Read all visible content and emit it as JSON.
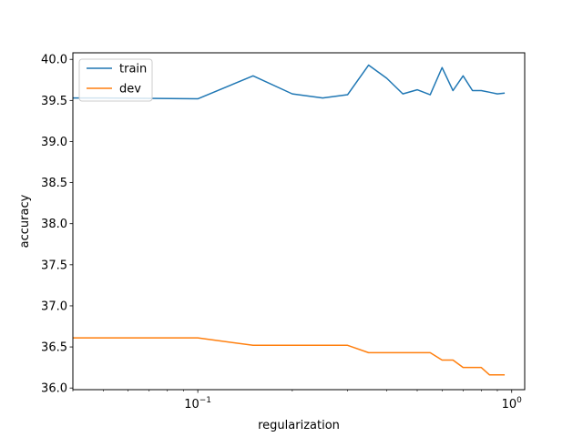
{
  "chart_data": {
    "type": "line",
    "title": "",
    "xlabel": "regularization",
    "ylabel": "accuracy",
    "xscale": "log",
    "xlim": [
      0.04,
      1.1
    ],
    "ylim": [
      35.98,
      40.08
    ],
    "grid": false,
    "legend_position": "top-left",
    "y_ticks": [
      "36.0",
      "36.5",
      "37.0",
      "37.5",
      "38.0",
      "38.5",
      "39.0",
      "39.5",
      "40.0"
    ],
    "x_ticks": [
      {
        "value": 0.1,
        "base": "10",
        "exp": "−1"
      },
      {
        "value": 1,
        "base": "10",
        "exp": "0"
      }
    ],
    "series": [
      {
        "name": "train",
        "color": "#1f77b4",
        "x": [
          0.04,
          0.05,
          0.1,
          0.15,
          0.2,
          0.25,
          0.3,
          0.35,
          0.4,
          0.45,
          0.5,
          0.55,
          0.6,
          0.65,
          0.7,
          0.75,
          0.8,
          0.85,
          0.9,
          0.95
        ],
        "y": [
          39.53,
          39.53,
          39.52,
          39.8,
          39.58,
          39.53,
          39.57,
          39.93,
          39.77,
          39.58,
          39.63,
          39.57,
          39.9,
          39.62,
          39.8,
          39.62,
          39.62,
          39.6,
          39.58,
          39.59
        ]
      },
      {
        "name": "dev",
        "color": "#ff7f0e",
        "x": [
          0.04,
          0.05,
          0.1,
          0.15,
          0.2,
          0.25,
          0.3,
          0.35,
          0.4,
          0.45,
          0.5,
          0.55,
          0.6,
          0.65,
          0.7,
          0.75,
          0.8,
          0.85,
          0.9,
          0.95
        ],
        "y": [
          36.61,
          36.61,
          36.61,
          36.52,
          36.52,
          36.52,
          36.52,
          36.43,
          36.43,
          36.43,
          36.43,
          36.43,
          36.34,
          36.34,
          36.25,
          36.25,
          36.25,
          36.16,
          36.16,
          36.16
        ]
      }
    ]
  }
}
